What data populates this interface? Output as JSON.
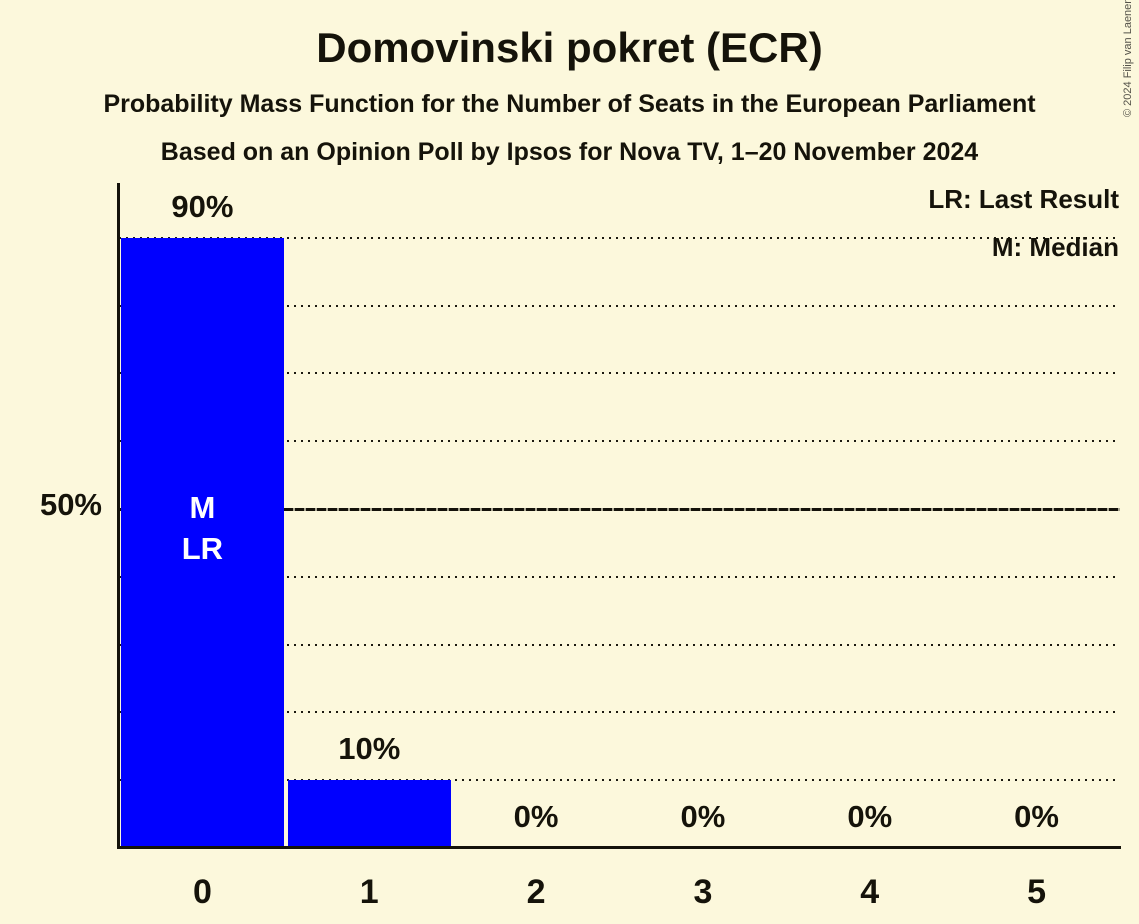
{
  "title": "Domovinski pokret (ECR)",
  "subtitle_line1": "Probability Mass Function for the Number of Seats in the European Parliament",
  "subtitle_line2": "Based on an Opinion Poll by Ipsos for Nova TV, 1–20 November 2024",
  "copyright": "© 2024 Filip van Laenen",
  "legend": {
    "last_result": "LR: Last Result",
    "median": "M: Median"
  },
  "y_axis": {
    "tick_label": "50%"
  },
  "colors": {
    "background": "#FCF8DC",
    "bar": "#0000FF",
    "text": "#15130A",
    "bar_annotation_text": "#FFFFFF",
    "gridline": "#1B1910"
  },
  "chart_data": {
    "type": "bar",
    "title": "Domovinski pokret (ECR)",
    "categories": [
      "0",
      "1",
      "2",
      "3",
      "4",
      "5"
    ],
    "values": [
      90,
      10,
      0,
      0,
      0,
      0
    ],
    "value_labels": [
      "90%",
      "10%",
      "0%",
      "0%",
      "0%",
      "0%"
    ],
    "xlabel": "",
    "ylabel": "",
    "ylim": [
      0,
      98
    ],
    "y_tick_interval_pct": 10,
    "y_gridlines": [
      {
        "value": 10,
        "style": "dotted"
      },
      {
        "value": 20,
        "style": "dotted"
      },
      {
        "value": 30,
        "style": "dotted"
      },
      {
        "value": 40,
        "style": "dotted"
      },
      {
        "value": 50,
        "style": "solid"
      },
      {
        "value": 60,
        "style": "dotted"
      },
      {
        "value": 70,
        "style": "dotted"
      },
      {
        "value": 80,
        "style": "dotted"
      },
      {
        "value": 90,
        "style": "dotted"
      }
    ],
    "annotations": [
      {
        "category": "0",
        "lines": [
          "M",
          "LR"
        ]
      }
    ],
    "legend_entries": [
      "LR: Last Result",
      "M: Median"
    ],
    "legend_position": "top-right",
    "grid": "horizontal"
  }
}
